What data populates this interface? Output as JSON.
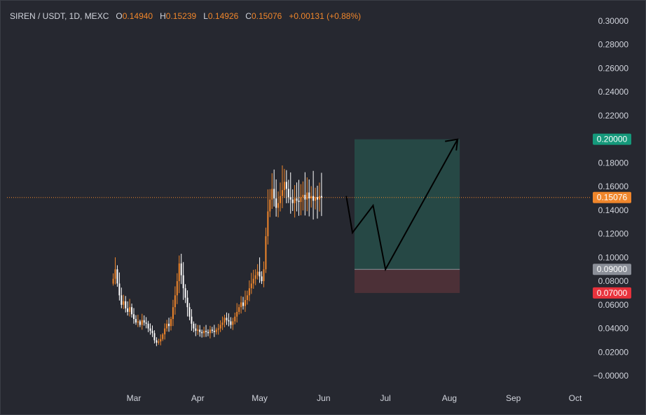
{
  "header": {
    "symbol": "SIREN / USDT, 1D, MEXC",
    "o_label": "O",
    "o_value": "0.14940",
    "h_label": "H",
    "h_value": "0.15239",
    "l_label": "L",
    "l_value": "0.14926",
    "c_label": "C",
    "c_value": "0.15076",
    "change": "+0.00131 (+0.88%)"
  },
  "colors": {
    "background": "#262830",
    "candle_up": "#f0862b",
    "candle_down": "#ffffff",
    "profit_zone": "#264a47",
    "loss_zone": "#4e3038",
    "target_badge": "#15997b",
    "stop_badge": "#e8323c",
    "entry_badge": "#8b8f98",
    "price_badge": "#f0862b",
    "text": "#d1d4dc"
  },
  "chart_data": {
    "type": "candlestick",
    "title": "SIREN / USDT, 1D, MEXC",
    "ylim": [
      -0.01,
      0.3
    ],
    "y_ticks": [
      "0.30000",
      "0.28000",
      "0.26000",
      "0.24000",
      "0.22000",
      "0.20000",
      "0.18000",
      "0.16000",
      "0.14000",
      "0.12000",
      "0.10000",
      "0.08000",
      "0.06000",
      "0.04000",
      "0.02000",
      "−0.00000"
    ],
    "y_tick_values": [
      0.3,
      0.28,
      0.26,
      0.24,
      0.22,
      0.2,
      0.18,
      0.16,
      0.14,
      0.12,
      0.1,
      0.08,
      0.06,
      0.04,
      0.02,
      0.0
    ],
    "x_ticks": [
      "Mar",
      "Apr",
      "May",
      "Jun",
      "Jul",
      "Aug",
      "Sep",
      "Oct"
    ],
    "x_tick_days": [
      0,
      31,
      61,
      92,
      122,
      153,
      184,
      214
    ],
    "grid": false,
    "last_price": 0.15076,
    "last_price_label": "0.15076",
    "position": {
      "target": 0.2,
      "target_label": "0.20000",
      "entry": 0.09,
      "entry_label": "0.09000",
      "stop": 0.07,
      "stop_label": "0.07000",
      "start_day": 107,
      "end_day": 158
    },
    "projection_path": [
      {
        "day": 103,
        "price": 0.152
      },
      {
        "day": 106,
        "price": 0.121
      },
      {
        "day": 116,
        "price": 0.144
      },
      {
        "day": 122,
        "price": 0.09
      },
      {
        "day": 157,
        "price": 0.2
      },
      {
        "day": 154,
        "price": 0.195
      }
    ],
    "closes": [
      0.082,
      0.09,
      0.078,
      0.068,
      0.06,
      0.063,
      0.057,
      0.054,
      0.058,
      0.052,
      0.048,
      0.045,
      0.046,
      0.043,
      0.047,
      0.045,
      0.044,
      0.04,
      0.038,
      0.036,
      0.03,
      0.028,
      0.029,
      0.031,
      0.035,
      0.04,
      0.044,
      0.042,
      0.048,
      0.058,
      0.068,
      0.08,
      0.095,
      0.085,
      0.074,
      0.066,
      0.058,
      0.05,
      0.044,
      0.04,
      0.038,
      0.039,
      0.037,
      0.036,
      0.038,
      0.037,
      0.036,
      0.039,
      0.038,
      0.037,
      0.039,
      0.04,
      0.043,
      0.045,
      0.049,
      0.047,
      0.046,
      0.043,
      0.046,
      0.05,
      0.054,
      0.058,
      0.062,
      0.059,
      0.064,
      0.068,
      0.074,
      0.078,
      0.082,
      0.085,
      0.088,
      0.084,
      0.08,
      0.09,
      0.118,
      0.139,
      0.149,
      0.158,
      0.15,
      0.142,
      0.146,
      0.152,
      0.157,
      0.164,
      0.158,
      0.151,
      0.149,
      0.146,
      0.15,
      0.148,
      0.147,
      0.151,
      0.153,
      0.149,
      0.155,
      0.15,
      0.152,
      0.148,
      0.151,
      0.149,
      0.152,
      0.1508
    ]
  }
}
